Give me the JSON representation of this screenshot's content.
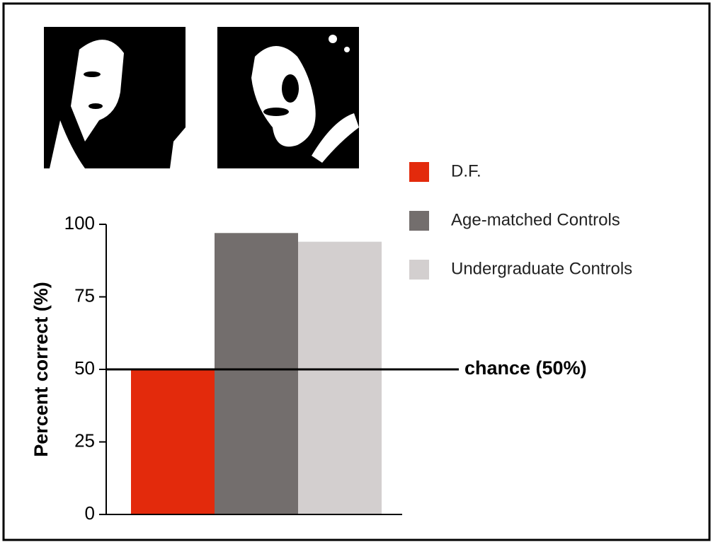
{
  "chart_data": {
    "type": "bar",
    "y_label": "Percent correct (%)",
    "series": [
      {
        "name": "D.F.",
        "color": "#e32a0c",
        "values": [
          50
        ]
      },
      {
        "name": "Age-matched Controls",
        "color": "#736e6d",
        "values": [
          97
        ]
      },
      {
        "name": "Undergraduate Controls",
        "color": "#d3cfcf",
        "values": [
          94
        ]
      }
    ],
    "ylim": [
      0,
      100
    ],
    "yticks": [
      0,
      25,
      50,
      75,
      100
    ],
    "annotations": [
      {
        "text": "chance (50%)",
        "value": 50
      }
    ]
  }
}
